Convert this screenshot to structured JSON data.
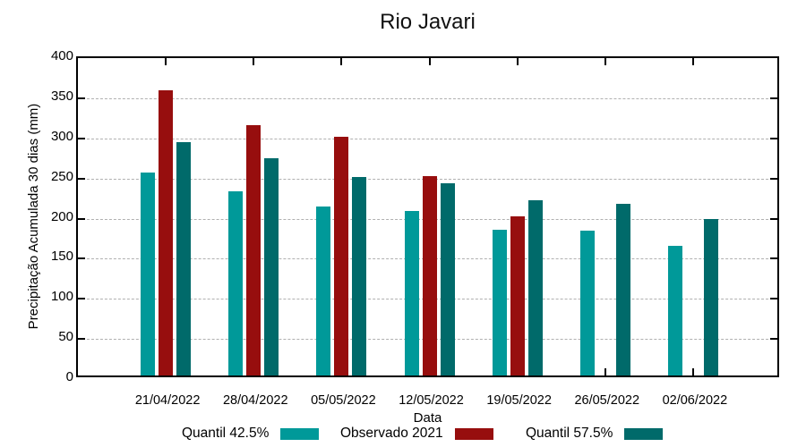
{
  "title": "Rio Javari",
  "chart_data": {
    "type": "bar",
    "title": "Rio Javari",
    "xlabel": "Data",
    "ylabel": "Precipitação Acumulada 30 dias (mm)",
    "ylim": [
      0,
      400
    ],
    "yticks": [
      0,
      50,
      100,
      150,
      200,
      250,
      300,
      350,
      400
    ],
    "grid": true,
    "legend_position": "bottom",
    "categories": [
      "21/04/2022",
      "28/04/2022",
      "05/05/2022",
      "12/05/2022",
      "19/05/2022",
      "26/05/2022",
      "02/06/2022"
    ],
    "series": [
      {
        "name": "Quantil 42.5%",
        "color": "#009999",
        "values": [
          254,
          231,
          212,
          206,
          183,
          181,
          162
        ]
      },
      {
        "name": "Observado 2021",
        "color": "#970E0E",
        "values": [
          357,
          314,
          299,
          250,
          200,
          null,
          null
        ]
      },
      {
        "name": "Quantil 57.5%",
        "color": "#006A6A",
        "values": [
          292,
          272,
          249,
          241,
          220,
          215,
          196
        ]
      }
    ]
  }
}
